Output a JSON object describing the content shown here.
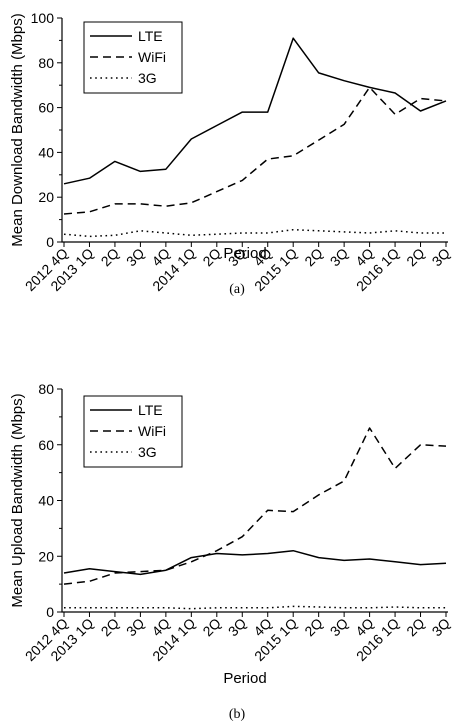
{
  "chart_data": [
    {
      "type": "line",
      "caption": "(a)",
      "xlabel": "Period",
      "ylabel": "Mean Download Bandwidth (Mbps)",
      "categories": [
        "2012 4Q",
        "2013 1Q",
        "2Q",
        "3Q",
        "4Q",
        "2014 1Q",
        "2Q",
        "3Q",
        "4Q",
        "2015 1Q",
        "2Q",
        "3Q",
        "4Q",
        "2016 1Q",
        "2Q",
        "3Q"
      ],
      "ylim": [
        0,
        100
      ],
      "yticks": [
        0,
        20,
        40,
        60,
        80,
        100
      ],
      "legend_position": "top-left",
      "grid": false,
      "series": [
        {
          "name": "LTE",
          "style": "solid",
          "values": [
            26,
            28.5,
            36,
            31.5,
            32.5,
            46,
            52,
            58,
            58,
            91,
            75.5,
            72,
            69,
            66.5,
            58.5,
            63
          ]
        },
        {
          "name": "WiFi",
          "style": "dashed",
          "values": [
            12.5,
            13.5,
            17,
            17,
            16,
            17.5,
            22.5,
            27.5,
            37,
            38.5,
            45.5,
            52.5,
            69,
            57,
            64,
            63
          ]
        },
        {
          "name": "3G",
          "style": "dotted",
          "values": [
            3.5,
            2.5,
            3,
            5,
            4,
            3,
            3.5,
            4,
            4,
            5.5,
            5,
            4.5,
            4,
            5,
            4,
            4
          ]
        }
      ]
    },
    {
      "type": "line",
      "caption": "(b)",
      "xlabel": "Period",
      "ylabel": "Mean Upload Bandwidth (Mbps)",
      "categories": [
        "2012 4Q",
        "2013 1Q",
        "2Q",
        "3Q",
        "4Q",
        "2014 1Q",
        "2Q",
        "3Q",
        "4Q",
        "2015 1Q",
        "2Q",
        "3Q",
        "4Q",
        "2016 1Q",
        "2Q",
        "3Q"
      ],
      "ylim": [
        0,
        80
      ],
      "yticks": [
        0,
        20,
        40,
        60,
        80
      ],
      "legend_position": "top-left",
      "grid": false,
      "series": [
        {
          "name": "LTE",
          "style": "solid",
          "values": [
            14,
            15.5,
            14.5,
            13.5,
            15,
            19.5,
            21,
            20.5,
            21,
            22,
            19.5,
            18.5,
            19,
            18,
            17,
            17.5
          ]
        },
        {
          "name": "WiFi",
          "style": "dashed",
          "values": [
            10,
            11,
            14,
            14.5,
            15,
            18,
            22,
            27,
            36.5,
            36,
            42,
            47,
            66,
            51.5,
            60,
            59.5
          ]
        },
        {
          "name": "3G",
          "style": "dotted",
          "values": [
            1.5,
            1.5,
            1.5,
            1.5,
            1.5,
            1.2,
            1.5,
            1.5,
            1.5,
            2,
            1.8,
            1.5,
            1.5,
            1.8,
            1.5,
            1.5
          ]
        }
      ]
    }
  ]
}
